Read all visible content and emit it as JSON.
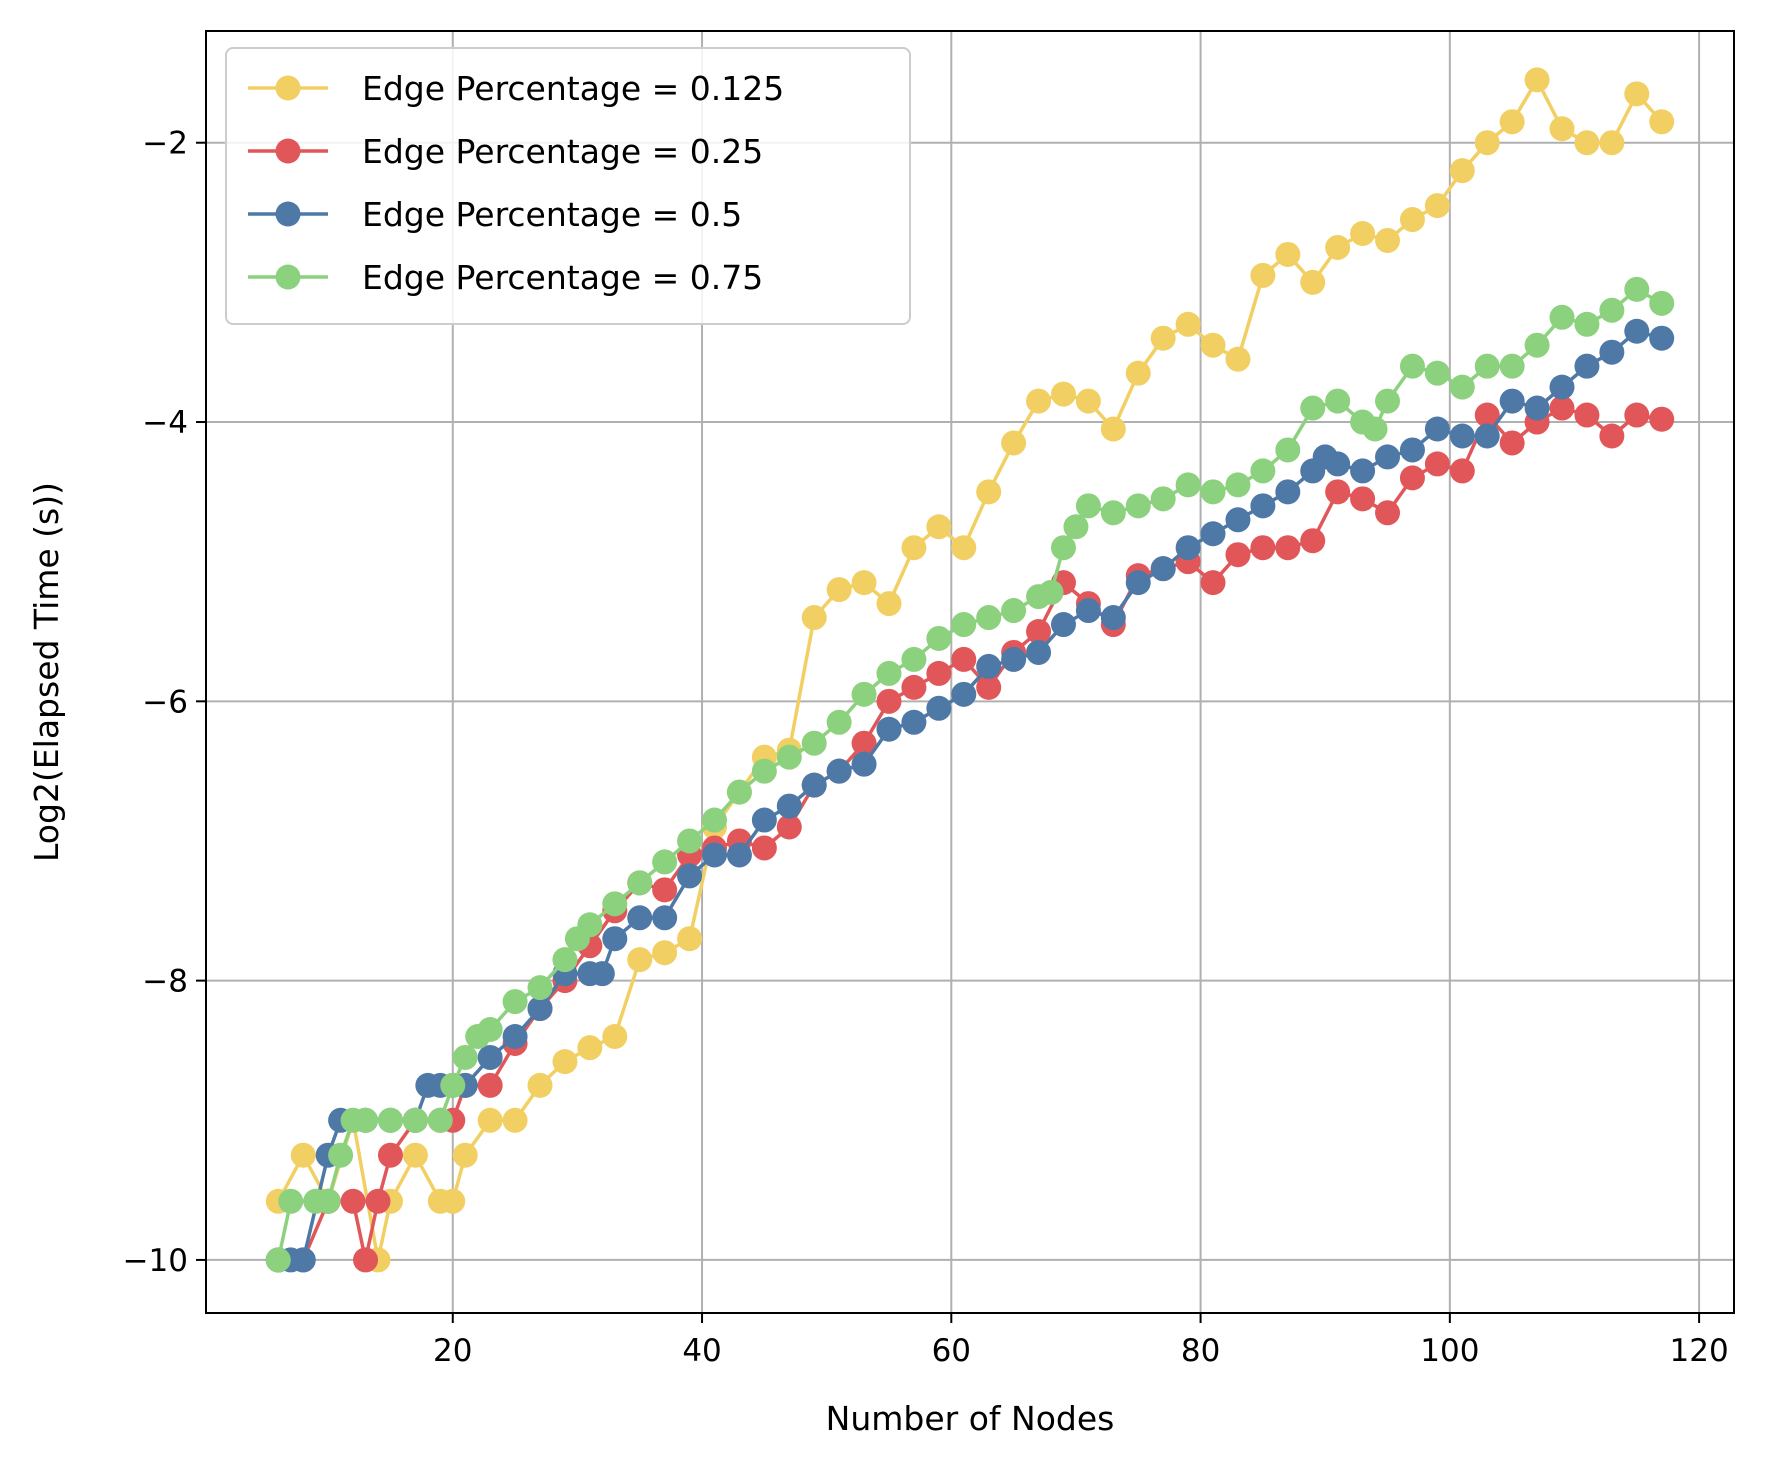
{
  "chart_data": {
    "type": "line",
    "title": "",
    "xlabel": "Number of Nodes",
    "ylabel": "Log2(Elapsed Time (s))",
    "xlim": [
      0.2,
      122.8
    ],
    "ylim": [
      -10.38,
      -1.2
    ],
    "xticks": [
      20,
      40,
      60,
      80,
      100,
      120
    ],
    "xtick_labels": [
      "20",
      "40",
      "60",
      "80",
      "100",
      "120"
    ],
    "yticks": [
      -10,
      -8,
      -6,
      -4,
      -2
    ],
    "ytick_labels": [
      "−10",
      "−8",
      "−6",
      "−4",
      "−2"
    ],
    "grid": true,
    "legend_position": "top-left",
    "series": [
      {
        "name": "Edge Percentage = 0.125",
        "color": "#f2cf63",
        "x": [
          6,
          8,
          10,
          12,
          14,
          15,
          17,
          19,
          20,
          21,
          23,
          25,
          27,
          29,
          31,
          33,
          35,
          37,
          39,
          41,
          43,
          45,
          47,
          49,
          51,
          53,
          55,
          57,
          59,
          61,
          63,
          65,
          67,
          69,
          71,
          73,
          75,
          77,
          79,
          81,
          83,
          85,
          87,
          89,
          91,
          93,
          95,
          97,
          99,
          101,
          103,
          105,
          107,
          109,
          111,
          113,
          115,
          117
        ],
        "y": [
          -9.58,
          -9.25,
          -9.58,
          -9.0,
          -10.0,
          -9.58,
          -9.25,
          -9.58,
          -9.58,
          -9.25,
          -9.0,
          -9.0,
          -8.75,
          -8.58,
          -8.48,
          -8.4,
          -7.85,
          -7.8,
          -7.7,
          -6.9,
          -6.65,
          -6.4,
          -6.35,
          -5.4,
          -5.2,
          -5.15,
          -5.3,
          -4.9,
          -4.75,
          -4.9,
          -4.5,
          -4.15,
          -3.85,
          -3.8,
          -3.85,
          -4.05,
          -3.65,
          -3.4,
          -3.3,
          -3.45,
          -3.55,
          -2.95,
          -2.8,
          -3.0,
          -2.75,
          -2.65,
          -2.7,
          -2.55,
          -2.45,
          -2.2,
          -2.0,
          -1.85,
          -1.55,
          -1.9,
          -2.0,
          -2.0,
          -1.65,
          -1.85
        ]
      },
      {
        "name": "Edge Percentage = 0.25",
        "color": "#e15759",
        "x": [
          6,
          8,
          10,
          12,
          13,
          14,
          15,
          17,
          19,
          20,
          21,
          23,
          25,
          27,
          29,
          31,
          33,
          35,
          37,
          39,
          41,
          43,
          45,
          47,
          49,
          51,
          53,
          55,
          57,
          59,
          61,
          63,
          65,
          67,
          69,
          71,
          73,
          75,
          77,
          79,
          81,
          83,
          85,
          87,
          89,
          91,
          93,
          95,
          97,
          99,
          101,
          103,
          105,
          107,
          109,
          111,
          113,
          115,
          117
        ],
        "y": [
          -10.0,
          -10.0,
          -9.58,
          -9.58,
          -10.0,
          -9.58,
          -9.25,
          -9.0,
          -9.0,
          -9.0,
          -8.75,
          -8.75,
          -8.45,
          -8.2,
          -8.0,
          -7.75,
          -7.5,
          -7.3,
          -7.35,
          -7.1,
          -7.05,
          -7.0,
          -7.05,
          -6.9,
          -6.6,
          -6.5,
          -6.3,
          -6.0,
          -5.9,
          -5.8,
          -5.7,
          -5.9,
          -5.65,
          -5.5,
          -5.15,
          -5.3,
          -5.45,
          -5.1,
          -5.05,
          -5.0,
          -5.15,
          -4.95,
          -4.9,
          -4.9,
          -4.85,
          -4.5,
          -4.55,
          -4.65,
          -4.4,
          -4.3,
          -4.35,
          -3.95,
          -4.15,
          -4.0,
          -3.9,
          -3.95,
          -4.1,
          -3.95,
          -3.98
        ]
      },
      {
        "name": "Edge Percentage = 0.5",
        "color": "#4e79a7",
        "x": [
          6,
          7,
          8,
          10,
          11,
          13,
          15,
          17,
          18,
          19,
          20,
          21,
          23,
          25,
          27,
          29,
          31,
          32,
          33,
          35,
          37,
          39,
          41,
          43,
          45,
          47,
          49,
          51,
          53,
          55,
          57,
          59,
          61,
          63,
          65,
          67,
          69,
          71,
          73,
          75,
          77,
          79,
          81,
          83,
          85,
          87,
          89,
          90,
          91,
          93,
          95,
          97,
          99,
          101,
          103,
          105,
          107,
          109,
          111,
          113,
          115,
          117
        ],
        "y": [
          -10.0,
          -10.0,
          -10.0,
          -9.25,
          -9.0,
          -9.0,
          -9.0,
          -9.0,
          -8.75,
          -8.75,
          -8.75,
          -8.75,
          -8.55,
          -8.4,
          -8.2,
          -7.95,
          -7.95,
          -7.95,
          -7.7,
          -7.55,
          -7.55,
          -7.25,
          -7.1,
          -7.1,
          -6.85,
          -6.75,
          -6.6,
          -6.5,
          -6.45,
          -6.2,
          -6.15,
          -6.05,
          -5.95,
          -5.75,
          -5.7,
          -5.65,
          -5.45,
          -5.35,
          -5.4,
          -5.15,
          -5.05,
          -4.9,
          -4.8,
          -4.7,
          -4.6,
          -4.5,
          -4.35,
          -4.25,
          -4.3,
          -4.35,
          -4.25,
          -4.2,
          -4.05,
          -4.1,
          -4.1,
          -3.85,
          -3.9,
          -3.75,
          -3.6,
          -3.5,
          -3.35,
          -3.4
        ]
      },
      {
        "name": "Edge Percentage = 0.75",
        "color": "#8cd17d",
        "x": [
          6,
          7,
          9,
          10,
          11,
          12,
          13,
          15,
          17,
          19,
          20,
          21,
          22,
          23,
          25,
          27,
          29,
          30,
          31,
          33,
          35,
          37,
          39,
          41,
          43,
          45,
          47,
          49,
          51,
          53,
          55,
          57,
          59,
          61,
          63,
          65,
          67,
          68,
          69,
          70,
          71,
          73,
          75,
          77,
          79,
          81,
          83,
          85,
          87,
          89,
          91,
          93,
          94,
          95,
          97,
          99,
          101,
          103,
          105,
          107,
          109,
          111,
          113,
          115,
          117
        ],
        "y": [
          -10.0,
          -9.58,
          -9.58,
          -9.58,
          -9.25,
          -9.0,
          -9.0,
          -9.0,
          -9.0,
          -9.0,
          -8.75,
          -8.55,
          -8.4,
          -8.35,
          -8.15,
          -8.05,
          -7.85,
          -7.7,
          -7.6,
          -7.45,
          -7.3,
          -7.15,
          -7.0,
          -6.85,
          -6.65,
          -6.5,
          -6.4,
          -6.3,
          -6.15,
          -5.95,
          -5.8,
          -5.7,
          -5.55,
          -5.45,
          -5.4,
          -5.35,
          -5.25,
          -5.22,
          -4.9,
          -4.75,
          -4.6,
          -4.65,
          -4.6,
          -4.55,
          -4.45,
          -4.5,
          -4.45,
          -4.35,
          -4.2,
          -3.9,
          -3.85,
          -4.0,
          -4.05,
          -3.85,
          -3.6,
          -3.65,
          -3.75,
          -3.6,
          -3.6,
          -3.45,
          -3.25,
          -3.3,
          -3.2,
          -3.05,
          -3.15
        ]
      }
    ]
  }
}
